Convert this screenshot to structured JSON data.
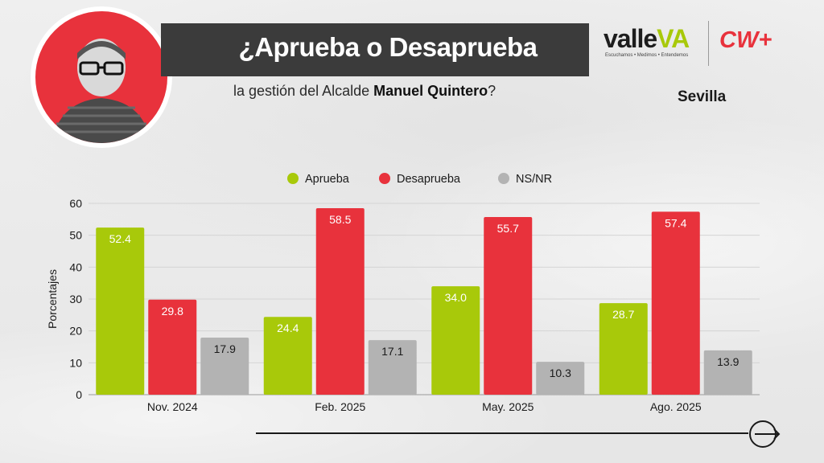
{
  "header": {
    "title": "¿Aprueba o Desaprueba",
    "subtitle_prefix": "la gestión del Alcalde ",
    "subtitle_name": "Manuel Quintero",
    "subtitle_suffix": "?",
    "city": "Sevilla"
  },
  "brand": {
    "valle_main": "valle",
    "valle_accent": "VA",
    "tagline": "Escuchamos • Medimos • Entendemos",
    "partner": "CW+",
    "accent_color": "#a8c90a",
    "red_color": "#e8323c"
  },
  "icons": {
    "portrait": "person-portrait",
    "next": "arrow-right-circle-icon"
  },
  "chart_data": {
    "type": "bar",
    "categories": [
      "Nov. 2024",
      "Feb. 2025",
      "May. 2025",
      "Ago. 2025"
    ],
    "series": [
      {
        "name": "Aprueba",
        "color": "#a8c90a",
        "values": [
          52.4,
          24.4,
          34.0,
          28.7
        ],
        "labels": [
          "52.4",
          "24.4",
          "34.0",
          "28.7"
        ]
      },
      {
        "name": "Desaprueba",
        "color": "#e8323c",
        "values": [
          29.8,
          58.5,
          55.7,
          57.4
        ],
        "labels": [
          "29.8",
          "58.5",
          "55.7",
          "57.4"
        ]
      },
      {
        "name": "NS/NR",
        "color": "#b3b3b3",
        "values": [
          17.9,
          17.1,
          10.3,
          13.9
        ],
        "labels": [
          "17.9",
          "17.1",
          "10.3",
          "13.9"
        ]
      }
    ],
    "ylabel": "Porcentajes",
    "xlabel": "",
    "ylim": [
      0,
      60
    ],
    "yticks": [
      0,
      10,
      20,
      30,
      40,
      50,
      60
    ],
    "grid": true,
    "legend": "top-center"
  }
}
